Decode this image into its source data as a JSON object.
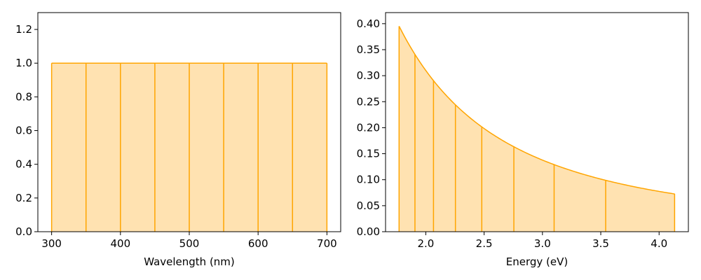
{
  "colors": {
    "line": "#ffa500",
    "fill": "#ffe2b1",
    "axes": "#000000",
    "background": "#ffffff"
  },
  "chart_data": [
    {
      "type": "area",
      "xlabel": "Wavelength (nm)",
      "ylabel": "",
      "title": "",
      "xlim": [
        280,
        720
      ],
      "ylim": [
        0,
        1.3
      ],
      "x_ticks": [
        300,
        400,
        500,
        600,
        700
      ],
      "x_tick_labels": [
        "300",
        "400",
        "500",
        "600",
        "700"
      ],
      "y_ticks": [
        0.0,
        0.2,
        0.4,
        0.6,
        0.8,
        1.0,
        1.2
      ],
      "y_tick_labels": [
        "0.0",
        "0.2",
        "0.4",
        "0.6",
        "0.8",
        "1.0",
        "1.2"
      ],
      "grid": false,
      "curve_x": [
        300,
        700
      ],
      "curve_y": [
        1.0,
        1.0
      ],
      "bin_edges_x": [
        300,
        350,
        400,
        450,
        500,
        550,
        600,
        650,
        700
      ],
      "bin_edges_y": [
        1.0,
        1.0,
        1.0,
        1.0,
        1.0,
        1.0,
        1.0,
        1.0,
        1.0
      ]
    },
    {
      "type": "area",
      "xlabel": "Energy (eV)",
      "ylabel": "",
      "title": "",
      "xlim": [
        1.655,
        4.251
      ],
      "ylim": [
        0,
        0.4213
      ],
      "x_ticks": [
        2.0,
        2.5,
        3.0,
        3.5,
        4.0
      ],
      "x_tick_labels": [
        "2.0",
        "2.5",
        "3.0",
        "3.5",
        "4.0"
      ],
      "y_ticks": [
        0.0,
        0.05,
        0.1,
        0.15,
        0.2,
        0.25,
        0.3,
        0.35,
        0.4
      ],
      "y_tick_labels": [
        "0.00",
        "0.05",
        "0.10",
        "0.15",
        "0.20",
        "0.25",
        "0.30",
        "0.35",
        "0.40"
      ],
      "grid": false,
      "curve": "y = 1.23984 / x^2",
      "curve_range": [
        1.771,
        4.133
      ],
      "bin_edges_x": [
        1.771,
        1.907,
        2.066,
        2.254,
        2.48,
        2.755,
        3.1,
        3.542,
        4.133
      ],
      "bin_edges_y": [
        0.395,
        0.341,
        0.29,
        0.244,
        0.202,
        0.163,
        0.129,
        0.099,
        0.073
      ]
    }
  ]
}
